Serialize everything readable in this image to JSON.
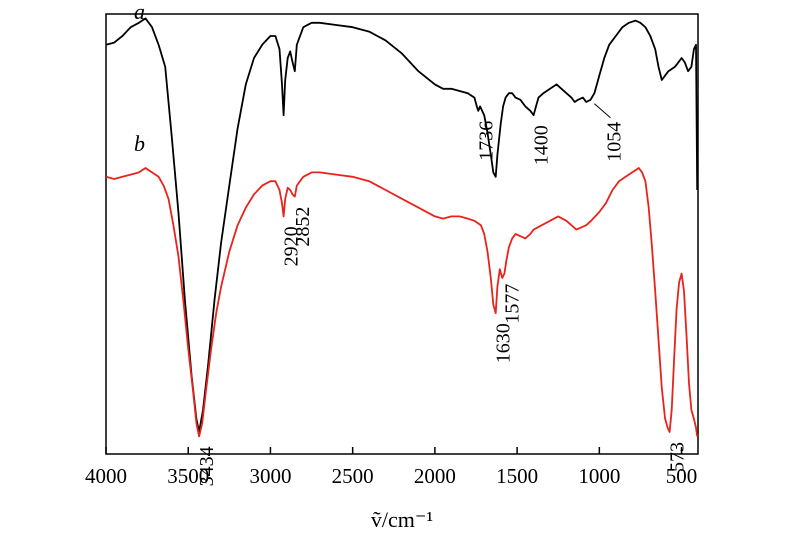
{
  "chart_data": {
    "type": "line",
    "xlabel": "ṽ/cm⁻¹",
    "xlim": [
      4000,
      400
    ],
    "x_reversed": true,
    "ylim": [
      0,
      100
    ],
    "y_ticks_shown": false,
    "grid": false,
    "x_ticks": [
      4000,
      3500,
      3000,
      2500,
      2000,
      1500,
      1000,
      500
    ],
    "x_tick_labels": [
      "4000",
      "3500",
      "3000",
      "2500",
      "2000",
      "1500",
      "1000",
      "500"
    ],
    "series": [
      {
        "name": "a",
        "color": "#000000",
        "points": [
          [
            4000,
            93
          ],
          [
            3950,
            93.5
          ],
          [
            3900,
            95
          ],
          [
            3850,
            97
          ],
          [
            3800,
            98
          ],
          [
            3760,
            99
          ],
          [
            3720,
            97
          ],
          [
            3680,
            93
          ],
          [
            3640,
            88
          ],
          [
            3600,
            72
          ],
          [
            3560,
            55
          ],
          [
            3520,
            35
          ],
          [
            3480,
            18
          ],
          [
            3450,
            8
          ],
          [
            3434,
            5
          ],
          [
            3410,
            10
          ],
          [
            3380,
            20
          ],
          [
            3340,
            35
          ],
          [
            3300,
            48
          ],
          [
            3250,
            61
          ],
          [
            3200,
            74
          ],
          [
            3150,
            84
          ],
          [
            3100,
            90
          ],
          [
            3050,
            93
          ],
          [
            3000,
            95
          ],
          [
            2970,
            95
          ],
          [
            2945,
            92
          ],
          [
            2930,
            84
          ],
          [
            2920,
            77
          ],
          [
            2910,
            85
          ],
          [
            2895,
            90
          ],
          [
            2880,
            91.5
          ],
          [
            2865,
            89
          ],
          [
            2852,
            87
          ],
          [
            2840,
            93
          ],
          [
            2800,
            97
          ],
          [
            2750,
            98
          ],
          [
            2700,
            98
          ],
          [
            2600,
            97.5
          ],
          [
            2500,
            97
          ],
          [
            2400,
            96
          ],
          [
            2300,
            94
          ],
          [
            2200,
            91
          ],
          [
            2100,
            87
          ],
          [
            2000,
            84
          ],
          [
            1950,
            83
          ],
          [
            1900,
            83
          ],
          [
            1850,
            82.5
          ],
          [
            1800,
            82
          ],
          [
            1760,
            81
          ],
          [
            1745,
            79
          ],
          [
            1736,
            78
          ],
          [
            1725,
            79
          ],
          [
            1700,
            77
          ],
          [
            1680,
            73
          ],
          [
            1660,
            68
          ],
          [
            1645,
            64
          ],
          [
            1630,
            63
          ],
          [
            1620,
            68
          ],
          [
            1600,
            75
          ],
          [
            1585,
            79
          ],
          [
            1570,
            81
          ],
          [
            1550,
            82
          ],
          [
            1530,
            82
          ],
          [
            1510,
            81
          ],
          [
            1480,
            80.5
          ],
          [
            1450,
            79
          ],
          [
            1420,
            78
          ],
          [
            1400,
            77
          ],
          [
            1385,
            79
          ],
          [
            1370,
            81
          ],
          [
            1340,
            82
          ],
          [
            1300,
            83
          ],
          [
            1260,
            84
          ],
          [
            1230,
            83
          ],
          [
            1200,
            82
          ],
          [
            1170,
            81
          ],
          [
            1150,
            80
          ],
          [
            1130,
            80.5
          ],
          [
            1100,
            81
          ],
          [
            1080,
            80
          ],
          [
            1054,
            80.5
          ],
          [
            1030,
            82
          ],
          [
            1000,
            86
          ],
          [
            970,
            90
          ],
          [
            940,
            93
          ],
          [
            900,
            95
          ],
          [
            860,
            97
          ],
          [
            820,
            98
          ],
          [
            780,
            98.5
          ],
          [
            750,
            98
          ],
          [
            720,
            97
          ],
          [
            690,
            95
          ],
          [
            660,
            92
          ],
          [
            640,
            88
          ],
          [
            620,
            85
          ],
          [
            600,
            86
          ],
          [
            580,
            87
          ],
          [
            560,
            87.5
          ],
          [
            540,
            88
          ],
          [
            520,
            89
          ],
          [
            500,
            90
          ],
          [
            480,
            89
          ],
          [
            460,
            87
          ],
          [
            440,
            88
          ],
          [
            425,
            92
          ],
          [
            412,
            93
          ],
          [
            405,
            60
          ]
        ]
      },
      {
        "name": "b",
        "color": "#e8231c",
        "points": [
          [
            4000,
            63
          ],
          [
            3950,
            62.5
          ],
          [
            3900,
            63
          ],
          [
            3850,
            63.5
          ],
          [
            3800,
            64
          ],
          [
            3760,
            65
          ],
          [
            3720,
            64
          ],
          [
            3680,
            63
          ],
          [
            3650,
            61
          ],
          [
            3620,
            58
          ],
          [
            3590,
            52
          ],
          [
            3560,
            45
          ],
          [
            3530,
            35
          ],
          [
            3500,
            24
          ],
          [
            3470,
            14
          ],
          [
            3450,
            7
          ],
          [
            3434,
            4
          ],
          [
            3415,
            7
          ],
          [
            3390,
            15
          ],
          [
            3360,
            24
          ],
          [
            3330,
            32
          ],
          [
            3300,
            38
          ],
          [
            3250,
            46
          ],
          [
            3200,
            52
          ],
          [
            3150,
            56
          ],
          [
            3100,
            59
          ],
          [
            3050,
            61
          ],
          [
            3000,
            62
          ],
          [
            2970,
            62
          ],
          [
            2945,
            60
          ],
          [
            2930,
            57
          ],
          [
            2920,
            54
          ],
          [
            2910,
            58
          ],
          [
            2895,
            60.5
          ],
          [
            2880,
            60
          ],
          [
            2865,
            59
          ],
          [
            2852,
            58.5
          ],
          [
            2840,
            61
          ],
          [
            2800,
            63
          ],
          [
            2750,
            64
          ],
          [
            2700,
            64
          ],
          [
            2600,
            63.5
          ],
          [
            2500,
            63
          ],
          [
            2400,
            62
          ],
          [
            2300,
            60
          ],
          [
            2200,
            58
          ],
          [
            2100,
            56
          ],
          [
            2000,
            54
          ],
          [
            1950,
            53.5
          ],
          [
            1900,
            54
          ],
          [
            1850,
            54
          ],
          [
            1800,
            53.5
          ],
          [
            1760,
            53
          ],
          [
            1720,
            52
          ],
          [
            1700,
            50
          ],
          [
            1680,
            46
          ],
          [
            1660,
            40
          ],
          [
            1645,
            34
          ],
          [
            1630,
            32
          ],
          [
            1620,
            38
          ],
          [
            1605,
            42
          ],
          [
            1590,
            40
          ],
          [
            1577,
            41
          ],
          [
            1565,
            44
          ],
          [
            1550,
            47
          ],
          [
            1530,
            49
          ],
          [
            1510,
            50
          ],
          [
            1480,
            49.5
          ],
          [
            1450,
            49
          ],
          [
            1420,
            50
          ],
          [
            1400,
            51
          ],
          [
            1350,
            52
          ],
          [
            1300,
            53
          ],
          [
            1250,
            54
          ],
          [
            1200,
            53
          ],
          [
            1170,
            52
          ],
          [
            1140,
            51
          ],
          [
            1110,
            51.5
          ],
          [
            1080,
            52
          ],
          [
            1050,
            53
          ],
          [
            1000,
            55
          ],
          [
            960,
            57
          ],
          [
            920,
            60
          ],
          [
            880,
            62
          ],
          [
            840,
            63
          ],
          [
            800,
            64
          ],
          [
            760,
            65
          ],
          [
            740,
            64
          ],
          [
            720,
            62
          ],
          [
            700,
            56
          ],
          [
            680,
            47
          ],
          [
            660,
            37
          ],
          [
            640,
            26
          ],
          [
            620,
            15
          ],
          [
            600,
            8
          ],
          [
            585,
            6
          ],
          [
            573,
            5
          ],
          [
            560,
            10
          ],
          [
            545,
            22
          ],
          [
            530,
            33
          ],
          [
            515,
            39
          ],
          [
            500,
            41
          ],
          [
            485,
            37
          ],
          [
            470,
            27
          ],
          [
            455,
            16
          ],
          [
            440,
            10
          ],
          [
            425,
            8
          ],
          [
            412,
            6
          ],
          [
            405,
            4
          ]
        ]
      }
    ],
    "annotations": [
      {
        "text": "1736",
        "x": 1736,
        "series": "a"
      },
      {
        "text": "1400",
        "x": 1400,
        "series": "a"
      },
      {
        "text": "1054",
        "x": 1054,
        "series": "a"
      },
      {
        "text": "2920",
        "x": 2920,
        "series": "b"
      },
      {
        "text": "2852",
        "x": 2852,
        "series": "b"
      },
      {
        "text": "1630",
        "x": 1630,
        "series": "b"
      },
      {
        "text": "1577",
        "x": 1577,
        "series": "b"
      },
      {
        "text": "3434",
        "x": 3434,
        "series": "b"
      },
      {
        "text": "573",
        "x": 573,
        "series": "b"
      }
    ]
  }
}
